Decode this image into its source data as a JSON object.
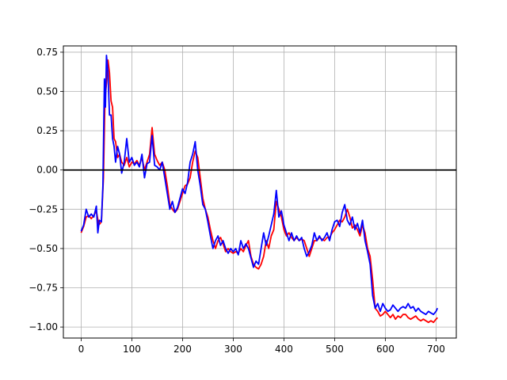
{
  "chart_data": {
    "type": "line",
    "title": "",
    "xlabel": "",
    "ylabel": "",
    "xlim": [
      -35,
      740
    ],
    "ylim": [
      -1.07,
      0.79
    ],
    "grid": true,
    "legend": "none",
    "x_ticks": [
      0,
      100,
      200,
      300,
      400,
      500,
      600,
      700
    ],
    "x_tick_labels": [
      "0",
      "100",
      "200",
      "300",
      "400",
      "500",
      "600",
      "700"
    ],
    "y_ticks": [
      0.75,
      0.5,
      0.25,
      0.0,
      -0.25,
      -0.5,
      -0.75,
      -1.0
    ],
    "y_tick_labels": [
      "0.75",
      "0.50",
      "0.25",
      "0.00",
      "−0.25",
      "−0.50",
      "−0.75",
      "−1.00"
    ],
    "reference_line": {
      "y": 0.0,
      "color": "#000000"
    },
    "series": [
      {
        "color": "#ff0000",
        "points": [
          [
            0,
            -0.4
          ],
          [
            5,
            -0.36
          ],
          [
            10,
            -0.3
          ],
          [
            15,
            -0.29
          ],
          [
            20,
            -0.31
          ],
          [
            25,
            -0.29
          ],
          [
            30,
            -0.26
          ],
          [
            35,
            -0.35
          ],
          [
            40,
            -0.33
          ],
          [
            44,
            -0.05
          ],
          [
            47,
            0.45
          ],
          [
            50,
            0.55
          ],
          [
            53,
            0.7
          ],
          [
            56,
            0.62
          ],
          [
            59,
            0.44
          ],
          [
            62,
            0.4
          ],
          [
            65,
            0.2
          ],
          [
            68,
            0.18
          ],
          [
            72,
            0.08
          ],
          [
            76,
            0.1
          ],
          [
            80,
            0.05
          ],
          [
            85,
            0.03
          ],
          [
            90,
            0.08
          ],
          [
            95,
            0.02
          ],
          [
            100,
            0.05
          ],
          [
            105,
            0.04
          ],
          [
            110,
            0.06
          ],
          [
            115,
            0.03
          ],
          [
            120,
            0.08
          ],
          [
            125,
            0.0
          ],
          [
            130,
            0.05
          ],
          [
            135,
            0.1
          ],
          [
            140,
            0.27
          ],
          [
            145,
            0.1
          ],
          [
            150,
            0.06
          ],
          [
            155,
            0.03
          ],
          [
            160,
            0.05
          ],
          [
            165,
            0.0
          ],
          [
            170,
            -0.1
          ],
          [
            175,
            -0.22
          ],
          [
            180,
            -0.25
          ],
          [
            185,
            -0.27
          ],
          [
            190,
            -0.25
          ],
          [
            195,
            -0.2
          ],
          [
            200,
            -0.15
          ],
          [
            205,
            -0.1
          ],
          [
            210,
            -0.09
          ],
          [
            215,
            -0.05
          ],
          [
            220,
            0.05
          ],
          [
            225,
            0.12
          ],
          [
            230,
            0.08
          ],
          [
            235,
            -0.05
          ],
          [
            240,
            -0.18
          ],
          [
            245,
            -0.25
          ],
          [
            250,
            -0.3
          ],
          [
            255,
            -0.38
          ],
          [
            260,
            -0.45
          ],
          [
            265,
            -0.5
          ],
          [
            270,
            -0.45
          ],
          [
            275,
            -0.43
          ],
          [
            280,
            -0.47
          ],
          [
            285,
            -0.52
          ],
          [
            290,
            -0.5
          ],
          [
            295,
            -0.52
          ],
          [
            300,
            -0.53
          ],
          [
            305,
            -0.52
          ],
          [
            310,
            -0.53
          ],
          [
            315,
            -0.5
          ],
          [
            320,
            -0.52
          ],
          [
            325,
            -0.48
          ],
          [
            330,
            -0.45
          ],
          [
            335,
            -0.55
          ],
          [
            340,
            -0.6
          ],
          [
            345,
            -0.62
          ],
          [
            350,
            -0.63
          ],
          [
            355,
            -0.6
          ],
          [
            360,
            -0.55
          ],
          [
            365,
            -0.45
          ],
          [
            370,
            -0.5
          ],
          [
            375,
            -0.42
          ],
          [
            380,
            -0.38
          ],
          [
            385,
            -0.2
          ],
          [
            390,
            -0.25
          ],
          [
            395,
            -0.3
          ],
          [
            400,
            -0.38
          ],
          [
            405,
            -0.42
          ],
          [
            410,
            -0.4
          ],
          [
            415,
            -0.43
          ],
          [
            420,
            -0.45
          ],
          [
            425,
            -0.43
          ],
          [
            430,
            -0.45
          ],
          [
            435,
            -0.44
          ],
          [
            440,
            -0.45
          ],
          [
            445,
            -0.5
          ],
          [
            450,
            -0.55
          ],
          [
            455,
            -0.5
          ],
          [
            460,
            -0.45
          ],
          [
            465,
            -0.45
          ],
          [
            470,
            -0.43
          ],
          [
            475,
            -0.44
          ],
          [
            480,
            -0.45
          ],
          [
            485,
            -0.43
          ],
          [
            490,
            -0.43
          ],
          [
            495,
            -0.4
          ],
          [
            500,
            -0.38
          ],
          [
            505,
            -0.35
          ],
          [
            510,
            -0.32
          ],
          [
            515,
            -0.33
          ],
          [
            520,
            -0.3
          ],
          [
            525,
            -0.25
          ],
          [
            530,
            -0.3
          ],
          [
            535,
            -0.37
          ],
          [
            540,
            -0.35
          ],
          [
            545,
            -0.38
          ],
          [
            550,
            -0.42
          ],
          [
            555,
            -0.35
          ],
          [
            560,
            -0.4
          ],
          [
            565,
            -0.5
          ],
          [
            570,
            -0.55
          ],
          [
            575,
            -0.7
          ],
          [
            580,
            -0.88
          ],
          [
            585,
            -0.9
          ],
          [
            590,
            -0.93
          ],
          [
            595,
            -0.92
          ],
          [
            600,
            -0.9
          ],
          [
            605,
            -0.92
          ],
          [
            610,
            -0.94
          ],
          [
            615,
            -0.92
          ],
          [
            620,
            -0.95
          ],
          [
            625,
            -0.93
          ],
          [
            630,
            -0.94
          ],
          [
            635,
            -0.92
          ],
          [
            640,
            -0.92
          ],
          [
            645,
            -0.94
          ],
          [
            650,
            -0.95
          ],
          [
            655,
            -0.94
          ],
          [
            660,
            -0.93
          ],
          [
            665,
            -0.95
          ],
          [
            670,
            -0.96
          ],
          [
            675,
            -0.95
          ],
          [
            680,
            -0.96
          ],
          [
            685,
            -0.97
          ],
          [
            690,
            -0.96
          ],
          [
            695,
            -0.97
          ],
          [
            700,
            -0.95
          ],
          [
            703,
            -0.94
          ]
        ]
      },
      {
        "color": "#0000ff",
        "points": [
          [
            0,
            -0.39
          ],
          [
            5,
            -0.35
          ],
          [
            10,
            -0.25
          ],
          [
            15,
            -0.3
          ],
          [
            20,
            -0.28
          ],
          [
            25,
            -0.3
          ],
          [
            30,
            -0.23
          ],
          [
            33,
            -0.4
          ],
          [
            36,
            -0.32
          ],
          [
            40,
            -0.33
          ],
          [
            43,
            -0.1
          ],
          [
            46,
            0.58
          ],
          [
            48,
            0.4
          ],
          [
            50,
            0.73
          ],
          [
            53,
            0.62
          ],
          [
            56,
            0.35
          ],
          [
            59,
            0.35
          ],
          [
            62,
            0.2
          ],
          [
            65,
            0.15
          ],
          [
            68,
            0.05
          ],
          [
            72,
            0.15
          ],
          [
            76,
            0.1
          ],
          [
            80,
            -0.02
          ],
          [
            85,
            0.05
          ],
          [
            90,
            0.2
          ],
          [
            95,
            0.05
          ],
          [
            100,
            0.08
          ],
          [
            105,
            0.03
          ],
          [
            110,
            0.05
          ],
          [
            115,
            0.02
          ],
          [
            120,
            0.1
          ],
          [
            125,
            -0.05
          ],
          [
            130,
            0.04
          ],
          [
            135,
            0.05
          ],
          [
            140,
            0.22
          ],
          [
            145,
            0.03
          ],
          [
            150,
            0.02
          ],
          [
            155,
            0.0
          ],
          [
            160,
            0.05
          ],
          [
            165,
            -0.05
          ],
          [
            170,
            -0.15
          ],
          [
            175,
            -0.25
          ],
          [
            180,
            -0.2
          ],
          [
            185,
            -0.27
          ],
          [
            190,
            -0.24
          ],
          [
            195,
            -0.18
          ],
          [
            200,
            -0.12
          ],
          [
            205,
            -0.15
          ],
          [
            210,
            -0.08
          ],
          [
            215,
            0.05
          ],
          [
            220,
            0.1
          ],
          [
            225,
            0.18
          ],
          [
            230,
            0.0
          ],
          [
            235,
            -0.1
          ],
          [
            240,
            -0.22
          ],
          [
            245,
            -0.25
          ],
          [
            250,
            -0.33
          ],
          [
            255,
            -0.42
          ],
          [
            260,
            -0.5
          ],
          [
            265,
            -0.45
          ],
          [
            270,
            -0.42
          ],
          [
            275,
            -0.48
          ],
          [
            280,
            -0.45
          ],
          [
            285,
            -0.5
          ],
          [
            290,
            -0.53
          ],
          [
            295,
            -0.5
          ],
          [
            300,
            -0.52
          ],
          [
            305,
            -0.5
          ],
          [
            310,
            -0.54
          ],
          [
            315,
            -0.45
          ],
          [
            320,
            -0.5
          ],
          [
            325,
            -0.47
          ],
          [
            330,
            -0.5
          ],
          [
            335,
            -0.56
          ],
          [
            340,
            -0.62
          ],
          [
            345,
            -0.58
          ],
          [
            350,
            -0.6
          ],
          [
            355,
            -0.5
          ],
          [
            360,
            -0.4
          ],
          [
            365,
            -0.48
          ],
          [
            370,
            -0.42
          ],
          [
            375,
            -0.35
          ],
          [
            380,
            -0.28
          ],
          [
            385,
            -0.13
          ],
          [
            390,
            -0.3
          ],
          [
            395,
            -0.26
          ],
          [
            400,
            -0.35
          ],
          [
            405,
            -0.4
          ],
          [
            410,
            -0.45
          ],
          [
            415,
            -0.4
          ],
          [
            420,
            -0.45
          ],
          [
            425,
            -0.42
          ],
          [
            430,
            -0.45
          ],
          [
            435,
            -0.43
          ],
          [
            440,
            -0.5
          ],
          [
            445,
            -0.55
          ],
          [
            450,
            -0.52
          ],
          [
            455,
            -0.48
          ],
          [
            460,
            -0.4
          ],
          [
            465,
            -0.45
          ],
          [
            470,
            -0.42
          ],
          [
            475,
            -0.45
          ],
          [
            480,
            -0.43
          ],
          [
            485,
            -0.4
          ],
          [
            490,
            -0.45
          ],
          [
            495,
            -0.38
          ],
          [
            500,
            -0.33
          ],
          [
            505,
            -0.32
          ],
          [
            510,
            -0.36
          ],
          [
            515,
            -0.27
          ],
          [
            520,
            -0.22
          ],
          [
            525,
            -0.32
          ],
          [
            530,
            -0.35
          ],
          [
            535,
            -0.3
          ],
          [
            540,
            -0.38
          ],
          [
            545,
            -0.34
          ],
          [
            550,
            -0.4
          ],
          [
            555,
            -0.32
          ],
          [
            560,
            -0.45
          ],
          [
            565,
            -0.52
          ],
          [
            570,
            -0.6
          ],
          [
            575,
            -0.8
          ],
          [
            580,
            -0.88
          ],
          [
            585,
            -0.85
          ],
          [
            590,
            -0.9
          ],
          [
            595,
            -0.85
          ],
          [
            600,
            -0.88
          ],
          [
            605,
            -0.9
          ],
          [
            610,
            -0.89
          ],
          [
            615,
            -0.86
          ],
          [
            620,
            -0.88
          ],
          [
            625,
            -0.9
          ],
          [
            630,
            -0.88
          ],
          [
            635,
            -0.87
          ],
          [
            640,
            -0.88
          ],
          [
            645,
            -0.85
          ],
          [
            650,
            -0.88
          ],
          [
            655,
            -0.87
          ],
          [
            660,
            -0.9
          ],
          [
            665,
            -0.88
          ],
          [
            670,
            -0.9
          ],
          [
            675,
            -0.91
          ],
          [
            680,
            -0.92
          ],
          [
            685,
            -0.9
          ],
          [
            690,
            -0.91
          ],
          [
            695,
            -0.92
          ],
          [
            700,
            -0.9
          ],
          [
            703,
            -0.88
          ]
        ]
      }
    ]
  }
}
